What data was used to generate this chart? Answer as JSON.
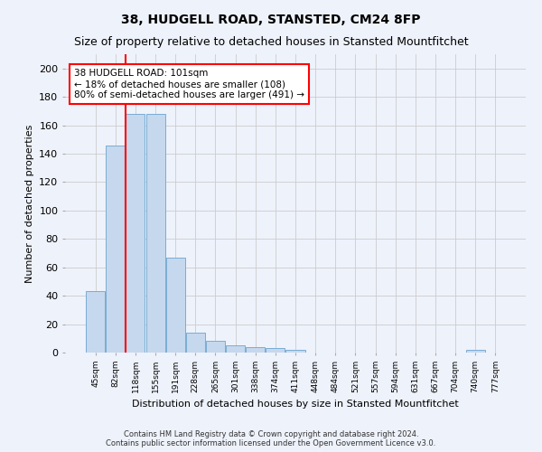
{
  "title": "38, HUDGELL ROAD, STANSTED, CM24 8FP",
  "subtitle": "Size of property relative to detached houses in Stansted Mountfitchet",
  "xlabel": "Distribution of detached houses by size in Stansted Mountfitchet",
  "ylabel": "Number of detached properties",
  "footer_line1": "Contains HM Land Registry data © Crown copyright and database right 2024.",
  "footer_line2": "Contains public sector information licensed under the Open Government Licence v3.0.",
  "categories": [
    "45sqm",
    "82sqm",
    "118sqm",
    "155sqm",
    "191sqm",
    "228sqm",
    "265sqm",
    "301sqm",
    "338sqm",
    "374sqm",
    "411sqm",
    "448sqm",
    "484sqm",
    "521sqm",
    "557sqm",
    "594sqm",
    "631sqm",
    "667sqm",
    "704sqm",
    "740sqm",
    "777sqm"
  ],
  "values": [
    43,
    146,
    168,
    168,
    67,
    14,
    8,
    5,
    4,
    3,
    2,
    0,
    0,
    0,
    0,
    0,
    0,
    0,
    0,
    2,
    0
  ],
  "bar_color": "#c5d8ed",
  "bar_edge_color": "#7aadd4",
  "grid_color": "#cccccc",
  "bg_color": "#eef2fb",
  "red_line_x": 1.5,
  "annotation_text": "38 HUDGELL ROAD: 101sqm\n← 18% of detached houses are smaller (108)\n80% of semi-detached houses are larger (491) →",
  "annotation_box_color": "white",
  "annotation_border_color": "red",
  "ylim": [
    0,
    210
  ],
  "yticks": [
    0,
    20,
    40,
    60,
    80,
    100,
    120,
    140,
    160,
    180,
    200
  ],
  "title_fontsize": 10,
  "subtitle_fontsize": 9
}
